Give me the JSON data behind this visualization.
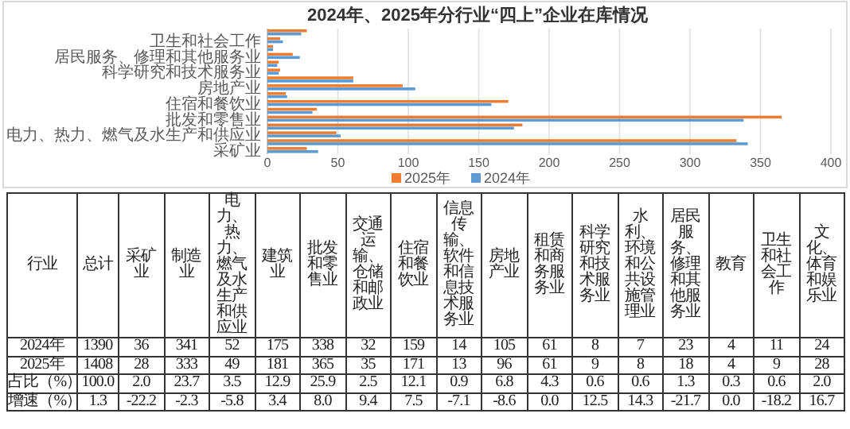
{
  "chart_data": {
    "type": "bar",
    "orientation": "horizontal",
    "title": "2024年、2025年分行业“四上”企业在库情况",
    "categories": [
      null,
      "卫生和社会工作",
      null,
      "居民服务、修理和其他服务业",
      null,
      "科学研究和技术服务业",
      null,
      "房地产业",
      null,
      "住宿和餐饮业",
      null,
      "批发和零售业",
      null,
      "电力、热力、燃气及水生产和供应业",
      null,
      "采矿业"
    ],
    "series": [
      {
        "name": "2025年",
        "color": "#ed7d31",
        "values": [
          28,
          9,
          4,
          18,
          8,
          9,
          61,
          96,
          13,
          171,
          35,
          365,
          181,
          49,
          333,
          28
        ]
      },
      {
        "name": "2024年",
        "color": "#5b9bd5",
        "values": [
          24,
          11,
          4,
          23,
          7,
          8,
          61,
          105,
          14,
          159,
          32,
          338,
          175,
          52,
          341,
          36
        ]
      }
    ],
    "xlim": [
      0,
      400
    ],
    "xticks": [
      0,
      50,
      100,
      150,
      200,
      250,
      300,
      350,
      400
    ],
    "grid": "x",
    "legend": "bottom",
    "annotations": [
      "行业",
      "总计",
      "1390",
      "1408",
      "100.0",
      "1.3",
      "占比（%）",
      "增速（%）",
      "2.0",
      "23.7",
      "3.5",
      "12.9",
      "25.9",
      "2.5",
      "12.1",
      "0.9",
      "6.8",
      "4.3",
      "0.6",
      "0.6",
      "1.3",
      "0.3",
      "0.6",
      "2.0",
      "-22.2",
      "-2.3",
      "-5.8",
      "3.4",
      "8.0",
      "9.4",
      "7.5",
      "-7.1",
      "-8.6",
      "0.0",
      "12.5",
      "14.3",
      "-21.7",
      "0.0",
      "-18.2",
      "16.7",
      "36",
      "341",
      "52",
      "175",
      "338",
      "32",
      "159",
      "14",
      "105",
      "61",
      "8",
      "7",
      "23",
      "4",
      "11",
      "24",
      "28",
      "333",
      "49",
      "181",
      "365",
      "35",
      "171",
      "13",
      "96",
      "61",
      "9",
      "8",
      "18",
      "4",
      "9",
      "28",
      "采矿业",
      "制造业",
      "电力、热力、燃气及水生产和供应业",
      "建筑业",
      "批发和零售业",
      "交通运输、仓储和邮政业",
      "住宿和餐饮业",
      "信息传输、软件和信息技术服务业",
      "房地产业",
      "租赁和商务服务业",
      "科学研究和技术服务业",
      "水利、环境和公共设施管理业",
      "居民服务、修理和其他服务业",
      "教育",
      "卫生和社会工作",
      "文化、体育和娱乐业"
    ]
  }
}
